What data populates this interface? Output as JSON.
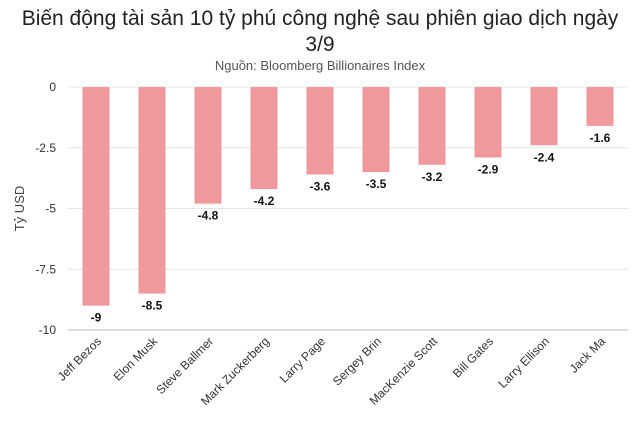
{
  "chart_data": {
    "type": "bar",
    "title_line1": "Biến động tài sản 10 tỷ phú công nghệ sau phiên giao dịch ngày",
    "title_line2": "3/9",
    "subtitle": "Nguồn: Bloomberg Billionaires Index",
    "ylabel": "Tỷ USD",
    "xlabel": "",
    "ylim": [
      -10,
      0
    ],
    "yticks": [
      0,
      -2.5,
      -5,
      -7.5,
      -10
    ],
    "ytick_labels": [
      "0",
      "-2.5",
      "-5",
      "-7.5",
      "-10"
    ],
    "categories": [
      "Jeff Bezos",
      "Elon Musk",
      "Steve Ballmer",
      "Mark Zuckerberg",
      "Larry Page",
      "Sergey Brin",
      "MacKenzie Scott",
      "Bill Gates",
      "Larry Ellison",
      "Jack Ma"
    ],
    "values": [
      -9,
      -8.5,
      -4.8,
      -4.2,
      -3.6,
      -3.5,
      -3.2,
      -2.9,
      -2.4,
      -1.6
    ],
    "value_labels": [
      "-9",
      "-8.5",
      "-4.8",
      "-4.2",
      "-3.6",
      "-3.5",
      "-3.2",
      "-2.9",
      "-2.4",
      "-1.6"
    ],
    "bar_color": "#f0999c",
    "grid": true,
    "legend": "none"
  }
}
